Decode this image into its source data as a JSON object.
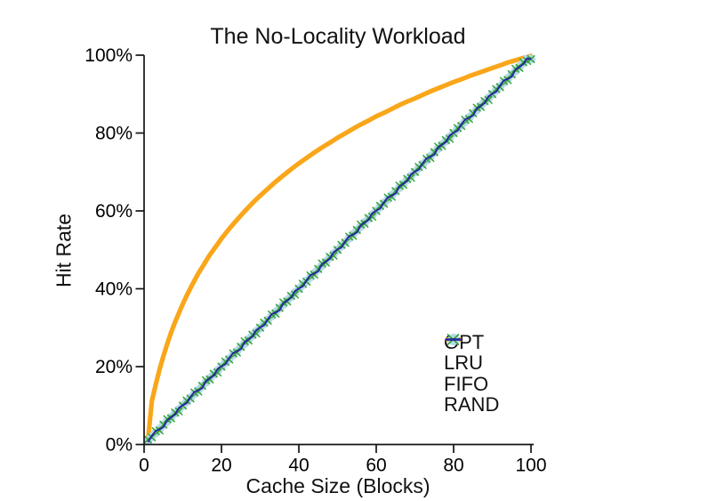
{
  "title": "The No-Locality Workload",
  "x_axis": {
    "label": "Cache Size (Blocks)",
    "tick_values": [
      0,
      20,
      40,
      60,
      80,
      100
    ],
    "tick_labels": [
      "0",
      "20",
      "40",
      "60",
      "80",
      "100"
    ],
    "range": [
      0,
      100
    ]
  },
  "y_axis": {
    "label": "Hit Rate",
    "tick_values": [
      0,
      20,
      40,
      60,
      80,
      100
    ],
    "tick_labels": [
      "0%",
      "20%",
      "40%",
      "60%",
      "80%",
      "100%"
    ],
    "range": [
      0,
      100
    ]
  },
  "colors": {
    "opt": "#F9A61A",
    "lru": "#B5D9E8",
    "fifo": "#30A030",
    "rand": "#28289C",
    "axis": "#141414",
    "text": "#000000",
    "background": "#FFFFFF"
  },
  "legend": [
    {
      "label": "OPT",
      "marker": "thick-line",
      "color": "#F9A61A"
    },
    {
      "label": "LRU",
      "marker": "circle",
      "color": "#B5D9E8"
    },
    {
      "label": "FIFO",
      "marker": "x",
      "color": "#30A030"
    },
    {
      "label": "RAND",
      "marker": "line",
      "color": "#28289C"
    }
  ],
  "chart_data": {
    "type": "line",
    "title": "The No-Locality Workload",
    "xlabel": "Cache Size (Blocks)",
    "ylabel": "Hit Rate",
    "xlim": [
      0,
      100
    ],
    "ylim": [
      0,
      100
    ],
    "y_unit": "percent",
    "grid": false,
    "legend_position": "inside lower right",
    "common_x": [
      1,
      2,
      3,
      4,
      5,
      6,
      7,
      8,
      9,
      10,
      11,
      12,
      13,
      14,
      15,
      16,
      17,
      18,
      19,
      20,
      21,
      22,
      23,
      24,
      25,
      26,
      27,
      28,
      29,
      30,
      31,
      32,
      33,
      34,
      35,
      36,
      37,
      38,
      39,
      40,
      41,
      42,
      43,
      44,
      45,
      46,
      47,
      48,
      49,
      50,
      51,
      52,
      53,
      54,
      55,
      56,
      57,
      58,
      59,
      60,
      61,
      62,
      63,
      64,
      65,
      66,
      67,
      68,
      69,
      70,
      71,
      72,
      73,
      74,
      75,
      76,
      77,
      78,
      79,
      80,
      81,
      82,
      83,
      84,
      85,
      86,
      87,
      88,
      89,
      90,
      91,
      92,
      93,
      94,
      95,
      96,
      97,
      98,
      99,
      100
    ],
    "series": [
      {
        "name": "OPT",
        "style": "thick solid curve",
        "color": "#F9A61A",
        "x": [
          1,
          2,
          3,
          4,
          5,
          6,
          7,
          8,
          9,
          10,
          11,
          12,
          13,
          14,
          15,
          16,
          17,
          18,
          19,
          20,
          22,
          24,
          26,
          28,
          30,
          32,
          34,
          36,
          38,
          40,
          42,
          44,
          46,
          48,
          50,
          52,
          54,
          56,
          58,
          60,
          62,
          64,
          66,
          68,
          70,
          72,
          74,
          76,
          78,
          80,
          82,
          84,
          86,
          88,
          90,
          92,
          94,
          96,
          98,
          100
        ],
        "y": [
          1.0,
          11.1,
          15.4,
          19.3,
          22.8,
          25.9,
          28.8,
          31.4,
          33.8,
          36.1,
          38.2,
          40.2,
          42.1,
          43.9,
          45.5,
          47.1,
          48.7,
          50.1,
          51.5,
          52.9,
          55.4,
          57.7,
          59.9,
          62.0,
          63.9,
          65.7,
          67.5,
          69.1,
          70.7,
          72.2,
          73.6,
          75.0,
          76.3,
          77.5,
          78.8,
          79.9,
          81.1,
          82.2,
          83.2,
          84.3,
          85.2,
          86.2,
          87.2,
          88.1,
          88.9,
          89.8,
          90.7,
          91.5,
          92.3,
          93.1,
          93.8,
          94.6,
          95.3,
          96.0,
          96.7,
          97.4,
          98.1,
          98.7,
          99.3,
          99.8
        ]
      },
      {
        "name": "LRU",
        "style": "filled circle markers on diagonal",
        "color": "#B5D9E8",
        "x_ref": "common_x",
        "y": [
          1,
          2,
          3,
          4,
          5,
          6,
          7,
          8,
          9,
          10,
          11,
          12,
          13,
          14,
          15,
          16,
          17,
          18,
          19,
          20,
          21,
          22,
          23,
          24,
          25,
          26,
          27,
          28,
          29,
          30,
          31,
          32,
          33,
          34,
          35,
          36,
          37,
          38,
          39,
          40,
          41,
          42,
          43,
          44,
          45,
          46,
          47,
          48,
          49,
          50,
          51,
          52,
          53,
          54,
          55,
          56,
          57,
          58,
          59,
          60,
          61,
          62,
          63,
          64,
          65,
          66,
          67,
          68,
          69,
          70,
          71,
          72,
          73,
          74,
          75,
          76,
          77,
          78,
          79,
          80,
          81,
          82,
          83,
          84,
          85,
          86,
          87,
          88,
          89,
          90,
          91,
          92,
          93,
          94,
          95,
          96,
          97,
          98,
          99,
          99
        ]
      },
      {
        "name": "FIFO",
        "style": "x markers on diagonal",
        "color": "#30A030",
        "x_ref": "common_x",
        "y": [
          1.3,
          1.8,
          3.4,
          3.6,
          5.1,
          6.5,
          6.7,
          8.2,
          8.5,
          10,
          11.3,
          11.8,
          13.4,
          13.6,
          15.1,
          16.5,
          16.7,
          18.2,
          18.5,
          20,
          21.3,
          21.8,
          23.4,
          23.6,
          25.1,
          26.5,
          26.7,
          28.2,
          28.5,
          30,
          31.3,
          31.8,
          33.4,
          33.6,
          35.1,
          36.5,
          36.7,
          38.2,
          38.5,
          40,
          41.3,
          41.8,
          43.4,
          43.6,
          45.1,
          46.5,
          46.7,
          48.2,
          48.5,
          50,
          51.3,
          51.8,
          53.4,
          53.6,
          55.1,
          56.5,
          56.7,
          58.2,
          58.5,
          60,
          61.3,
          61.8,
          63.4,
          63.6,
          65.1,
          66.5,
          66.7,
          68.2,
          68.5,
          70,
          71.3,
          71.8,
          73.4,
          73.6,
          75.1,
          76.5,
          76.7,
          78.2,
          78.5,
          80,
          81.3,
          81.8,
          83.4,
          83.6,
          85.1,
          86.5,
          86.7,
          88.2,
          88.5,
          90,
          91.3,
          91.8,
          93.4,
          93.6,
          95.1,
          96.5,
          96.7,
          98.2,
          98.5,
          99
        ]
      },
      {
        "name": "RAND",
        "style": "thin solid jittery line on diagonal",
        "color": "#28289C",
        "x_ref": "common_x",
        "y": [
          0.6,
          2.2,
          3.5,
          3.9,
          4.5,
          6.3,
          7,
          7.7,
          9.4,
          10.1,
          10.6,
          12.2,
          13.5,
          13.9,
          14.5,
          16.3,
          17,
          17.7,
          19.4,
          20.1,
          20.6,
          22.2,
          23.5,
          23.9,
          24.5,
          26.3,
          27,
          27.7,
          29.4,
          30.1,
          30.6,
          32.2,
          33.5,
          33.9,
          34.5,
          36.3,
          37,
          37.7,
          39.4,
          40.1,
          40.6,
          42.2,
          43.5,
          43.9,
          44.5,
          46.3,
          47,
          47.7,
          49.4,
          50.1,
          50.6,
          52.2,
          53.5,
          53.9,
          54.5,
          56.3,
          57,
          57.7,
          59.4,
          60.1,
          60.6,
          62.2,
          63.5,
          63.9,
          64.5,
          66.3,
          67,
          67.7,
          69.4,
          70.1,
          70.6,
          72.2,
          73.5,
          73.9,
          74.5,
          76.3,
          77,
          77.7,
          79.4,
          80.1,
          80.6,
          82.2,
          83.5,
          83.9,
          84.5,
          86.3,
          87,
          87.7,
          89.4,
          90.1,
          90.6,
          92.2,
          93.5,
          93.9,
          94.5,
          96.3,
          97,
          97.7,
          99.2,
          99
        ]
      }
    ]
  }
}
